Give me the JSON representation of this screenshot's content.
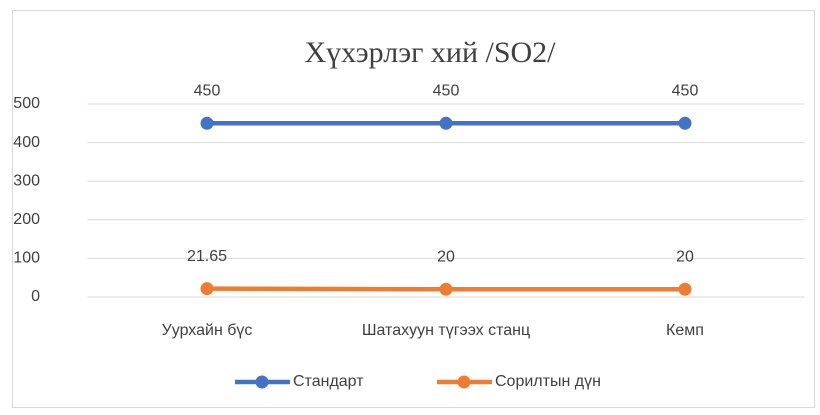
{
  "chart_data": {
    "type": "line",
    "title": "Хүхэрлэг хий /SO2/",
    "categories": [
      "Уурхайн бүс",
      "Шатахуун түгээх станц",
      "Кемп"
    ],
    "series": [
      {
        "name": "Стандарт",
        "color": "#4472c4",
        "values": [
          450,
          450,
          450
        ]
      },
      {
        "name": "Сорилтын дүн",
        "color": "#ed7d31",
        "values": [
          21.65,
          20,
          20
        ]
      }
    ],
    "ylim": [
      0,
      500
    ],
    "yticks": [
      0,
      100,
      200,
      300,
      400,
      500
    ],
    "grid": true,
    "legend": "bottom"
  }
}
